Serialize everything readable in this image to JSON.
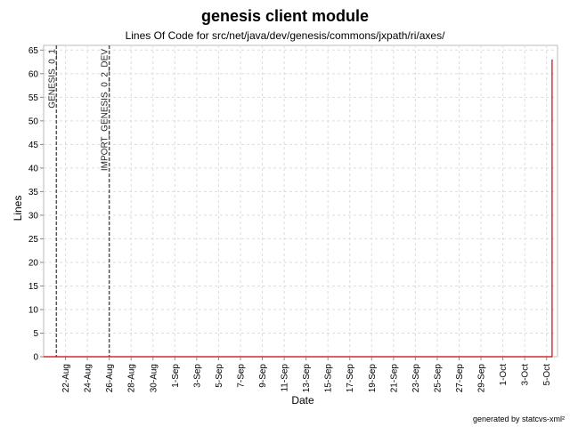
{
  "chart_data": {
    "type": "line",
    "title": "genesis client module",
    "subtitle": "Lines Of Code for src/net/java/dev/genesis/commons/jxpath/ri/axes/",
    "xlabel": "Date",
    "ylabel": "Lines",
    "ylim": [
      0,
      66
    ],
    "yticks": [
      0,
      5,
      10,
      15,
      20,
      25,
      30,
      35,
      40,
      45,
      50,
      55,
      60,
      65
    ],
    "xlim": [
      "2005-08-20",
      "2005-10-06"
    ],
    "xticks": [
      "2005-08-22",
      "2005-08-24",
      "2005-08-26",
      "2005-08-28",
      "2005-08-30",
      "2005-09-01",
      "2005-09-03",
      "2005-09-05",
      "2005-09-07",
      "2005-09-09",
      "2005-09-11",
      "2005-09-13",
      "2005-09-15",
      "2005-09-17",
      "2005-09-19",
      "2005-09-21",
      "2005-09-23",
      "2005-09-25",
      "2005-09-27",
      "2005-09-29",
      "2005-10-01",
      "2005-10-03",
      "2005-10-05"
    ],
    "xtick_labels": [
      "22-Aug",
      "24-Aug",
      "26-Aug",
      "28-Aug",
      "30-Aug",
      "1-Sep",
      "3-Sep",
      "5-Sep",
      "7-Sep",
      "9-Sep",
      "11-Sep",
      "13-Sep",
      "15-Sep",
      "17-Sep",
      "19-Sep",
      "21-Sep",
      "23-Sep",
      "25-Sep",
      "27-Sep",
      "29-Sep",
      "1-Oct",
      "3-Oct",
      "5-Oct"
    ],
    "grid": true,
    "series": [
      {
        "color": "#cc0000",
        "x": [
          "2005-08-20",
          "2005-10-05T12:00",
          "2005-10-05T12:00"
        ],
        "y": [
          0,
          0,
          63
        ]
      }
    ],
    "markers": [
      {
        "label": "GENESIS_0_1",
        "x": "2005-08-21T04:00"
      },
      {
        "label": "IMPORT_GENESIS_0_2_DEV",
        "x": "2005-08-26T00:00"
      }
    ],
    "footer": "generated by statcvs-xml²"
  }
}
